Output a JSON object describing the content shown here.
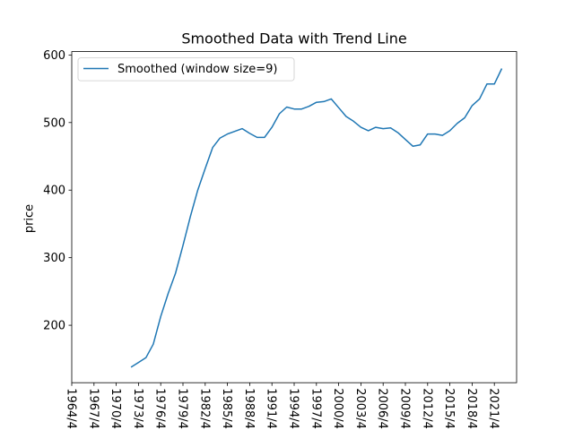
{
  "chart_data": {
    "type": "line",
    "title": "Smoothed Data with Trend Line",
    "xlabel": "",
    "ylabel": "price",
    "xlim": [
      1964.25,
      2024.25
    ],
    "ylim": [
      115,
      605
    ],
    "x_tick_labels": [
      "1964/4",
      "1967/4",
      "1970/4",
      "1973/4",
      "1976/4",
      "1979/4",
      "1982/4",
      "1985/4",
      "1988/4",
      "1991/4",
      "1994/4",
      "1997/4",
      "2000/4",
      "2003/4",
      "2006/4",
      "2009/4",
      "2012/4",
      "2015/4",
      "2018/4",
      "2021/4"
    ],
    "y_ticks": [
      200,
      300,
      400,
      500,
      600
    ],
    "grid": false,
    "legend_position": "top-left",
    "series": [
      {
        "name": "Smoothed (window size=9)",
        "color": "#1f77b4",
        "x": [
          1972.25,
          1973.25,
          1974.25,
          1975.25,
          1976.25,
          1977.25,
          1978.25,
          1979.25,
          1980.25,
          1981.25,
          1982.25,
          1983.25,
          1984.25,
          1985.25,
          1986.25,
          1987.25,
          1988.25,
          1989.25,
          1990.25,
          1991.25,
          1992.25,
          1993.25,
          1994.25,
          1995.25,
          1996.25,
          1997.25,
          1998.25,
          1999.25,
          2000.25,
          2001.25,
          2002.25,
          2003.25,
          2004.25,
          2005.25,
          2006.25,
          2007.25,
          2008.25,
          2009.25,
          2010.25,
          2011.25,
          2012.25,
          2013.25,
          2014.25,
          2015.25,
          2016.25,
          2017.25,
          2018.25,
          2019.25,
          2020.25,
          2021.25,
          2022.25
        ],
        "y": [
          138,
          145,
          152,
          172,
          213,
          247,
          277,
          318,
          361,
          400,
          432,
          463,
          477,
          483,
          487,
          491,
          484,
          478,
          478,
          493,
          513,
          523,
          520,
          520,
          524,
          530,
          531,
          535,
          522,
          509,
          502,
          493,
          488,
          493,
          491,
          492,
          485,
          475,
          465,
          467,
          483,
          483,
          481,
          488,
          499,
          507,
          525,
          535,
          557,
          557,
          580
        ]
      }
    ]
  }
}
